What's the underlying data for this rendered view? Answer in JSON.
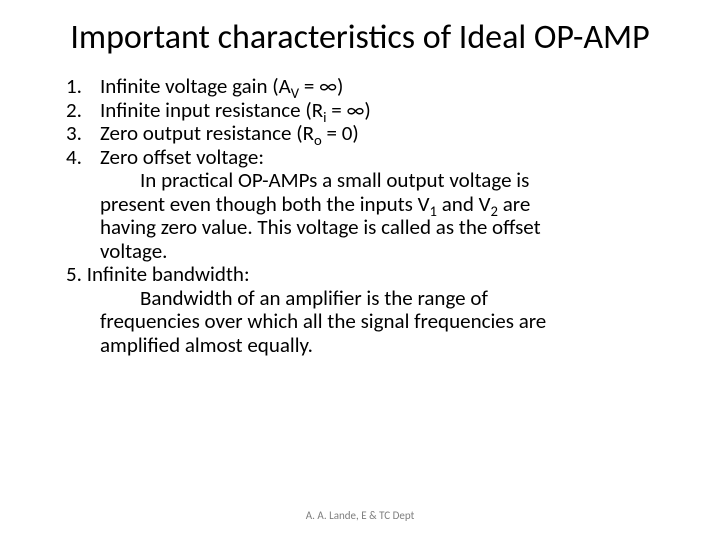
{
  "title": "Important characteristics of Ideal OP-AMP",
  "items": [
    {
      "num": "1.",
      "text": "Infinite voltage gain (A",
      "sub": "V",
      "after": " = ∞)"
    },
    {
      "num": "2.",
      "text": "Infinite input resistance (R",
      "sub": "i",
      "after": " = ∞)"
    },
    {
      "num": "3.",
      "text": "Zero output resistance (R",
      "sub": "o",
      "after": " = 0)"
    },
    {
      "num": "4.",
      "text": "Zero offset voltage:",
      "sub": "",
      "after": ""
    }
  ],
  "para4_a": "In practical OP-AMPs a small output voltage is",
  "para4_b1": "present even though both the inputs V",
  "para4_b_sub1": "1",
  "para4_b2": " and V",
  "para4_b_sub2": "2",
  "para4_b3": " are",
  "para4_c": "having zero value. This voltage is called as the offset",
  "para4_d": "voltage.",
  "item5_label": "5. Infinite bandwidth:",
  "para5_a": "Bandwidth of an amplifier is the range of",
  "para5_b": "frequencies over which all the signal frequencies are",
  "para5_c": "amplified almost equally.",
  "footer": "A. A. Lande, E & TC Dept",
  "colors": {
    "background": "#ffffff",
    "text": "#000000",
    "footer": "#7f7f7f"
  },
  "fontsizes": {
    "title": 34,
    "body": 21,
    "footer": 11
  }
}
